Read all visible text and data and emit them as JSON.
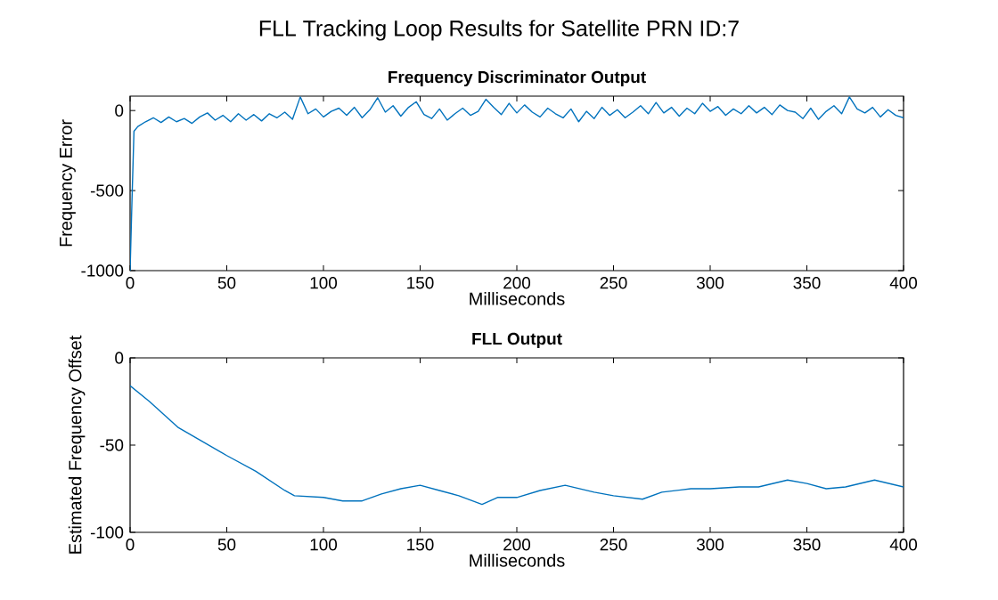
{
  "chart_data": [
    {
      "type": "line",
      "title": "FLL Tracking Loop Results for Satellite PRN ID:7",
      "subtitle": "Frequency Discriminator Output",
      "xlabel": "Milliseconds",
      "ylabel": "Frequency Error",
      "xlim": [
        0,
        400
      ],
      "ylim": [
        -1000,
        90
      ],
      "xticks": [
        0,
        50,
        100,
        150,
        200,
        250,
        300,
        350,
        400
      ],
      "yticks": [
        -1000,
        -500,
        0
      ],
      "x": [
        0,
        1,
        2,
        4,
        8,
        12,
        16,
        20,
        24,
        28,
        32,
        36,
        40,
        44,
        48,
        52,
        56,
        60,
        64,
        68,
        72,
        76,
        80,
        84,
        88,
        92,
        96,
        100,
        104,
        108,
        112,
        116,
        120,
        124,
        128,
        132,
        136,
        140,
        144,
        148,
        152,
        156,
        160,
        164,
        168,
        172,
        176,
        180,
        184,
        188,
        192,
        196,
        200,
        204,
        208,
        212,
        216,
        220,
        224,
        228,
        232,
        236,
        240,
        244,
        248,
        252,
        256,
        260,
        264,
        268,
        272,
        276,
        280,
        284,
        288,
        292,
        296,
        300,
        304,
        308,
        312,
        316,
        320,
        324,
        328,
        332,
        336,
        340,
        344,
        348,
        352,
        356,
        360,
        364,
        368,
        372,
        376,
        380,
        384,
        388,
        392,
        396,
        400
      ],
      "series": [
        {
          "color": "#0072bd",
          "values": [
            -1000,
            -550,
            -130,
            -100,
            -70,
            -45,
            -75,
            -40,
            -70,
            -50,
            -80,
            -40,
            -15,
            -60,
            -30,
            -70,
            -20,
            -60,
            -25,
            -65,
            -20,
            -45,
            -10,
            -55,
            85,
            -20,
            10,
            -40,
            -5,
            15,
            -30,
            20,
            -45,
            5,
            80,
            -10,
            30,
            -35,
            20,
            55,
            -25,
            -50,
            10,
            -60,
            -20,
            15,
            -30,
            -5,
            70,
            20,
            -25,
            45,
            -15,
            35,
            -10,
            -40,
            15,
            -20,
            -45,
            10,
            -70,
            -5,
            -50,
            20,
            -30,
            5,
            -45,
            -10,
            30,
            -20,
            50,
            -15,
            20,
            -35,
            15,
            -20,
            45,
            -5,
            25,
            -30,
            10,
            -20,
            30,
            -15,
            20,
            -25,
            35,
            0,
            -10,
            -50,
            15,
            -55,
            -5,
            30,
            -20,
            85,
            10,
            -15,
            20,
            -40,
            5,
            -30,
            -45
          ]
        }
      ]
    },
    {
      "type": "line",
      "title": "FLL Output",
      "xlabel": "Milliseconds",
      "ylabel": "Estimated Frequency Offset",
      "xlim": [
        0,
        400
      ],
      "ylim": [
        -100,
        0
      ],
      "xticks": [
        0,
        50,
        100,
        150,
        200,
        250,
        300,
        350,
        400
      ],
      "yticks": [
        -100,
        -50,
        0
      ],
      "x": [
        0,
        10,
        25,
        50,
        65,
        80,
        85,
        100,
        110,
        120,
        130,
        140,
        150,
        160,
        170,
        182,
        190,
        200,
        212,
        225,
        240,
        250,
        265,
        275,
        290,
        300,
        315,
        325,
        340,
        350,
        360,
        370,
        385,
        400
      ],
      "series": [
        {
          "color": "#0072bd",
          "values": [
            -16,
            -25,
            -40,
            -56,
            -65,
            -76,
            -79,
            -80,
            -82,
            -82,
            -78,
            -75,
            -73,
            -76,
            -79,
            -84,
            -80,
            -80,
            -76,
            -73,
            -77,
            -79,
            -81,
            -77,
            -75,
            -75,
            -74,
            -74,
            -70,
            -72,
            -75,
            -74,
            -70,
            -74
          ]
        }
      ]
    }
  ]
}
